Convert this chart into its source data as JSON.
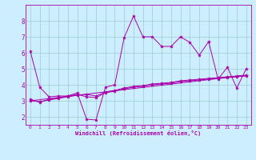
{
  "xlabel": "Windchill (Refroidissement éolien,°C)",
  "bg_color": "#cceeff",
  "grid_color": "#99cccc",
  "line_color": "#aa00aa",
  "xlim": [
    -0.5,
    23.5
  ],
  "ylim": [
    1.5,
    9.0
  ],
  "xticks": [
    0,
    1,
    2,
    3,
    4,
    5,
    6,
    7,
    8,
    9,
    10,
    11,
    12,
    13,
    14,
    15,
    16,
    17,
    18,
    19,
    20,
    21,
    22,
    23
  ],
  "yticks": [
    2,
    3,
    4,
    5,
    6,
    7,
    8
  ],
  "line1_x": [
    0,
    1,
    2,
    3,
    4,
    5,
    6,
    7,
    8,
    9,
    10,
    11,
    12,
    13,
    14,
    15,
    16,
    17,
    18,
    19,
    20,
    21,
    22,
    23
  ],
  "line1_y": [
    6.1,
    3.85,
    3.25,
    3.3,
    3.3,
    3.5,
    1.85,
    1.8,
    3.85,
    4.0,
    6.95,
    8.3,
    7.0,
    7.0,
    6.4,
    6.4,
    7.0,
    6.65,
    5.85,
    6.7,
    4.35,
    5.1,
    3.8,
    5.0
  ],
  "line2_x": [
    0,
    1,
    2,
    3,
    4,
    5,
    6,
    7,
    8,
    9,
    10,
    11,
    12,
    13,
    14,
    15,
    16,
    17,
    18,
    19,
    20,
    21,
    22,
    23
  ],
  "line2_y": [
    3.1,
    2.9,
    3.1,
    3.2,
    3.3,
    3.4,
    3.25,
    3.2,
    3.5,
    3.6,
    3.75,
    3.85,
    3.9,
    4.0,
    4.05,
    4.1,
    4.2,
    4.25,
    4.3,
    4.35,
    4.4,
    4.45,
    4.5,
    4.55
  ],
  "line3_x": [
    0,
    1,
    2,
    3,
    4,
    5,
    6,
    7,
    8,
    9,
    10,
    11,
    12,
    13,
    14,
    15,
    16,
    17,
    18,
    19,
    20,
    21,
    22,
    23
  ],
  "line3_y": [
    3.0,
    2.95,
    3.05,
    3.15,
    3.25,
    3.35,
    3.4,
    3.3,
    3.55,
    3.65,
    3.8,
    3.9,
    3.95,
    4.05,
    4.1,
    4.15,
    4.25,
    4.3,
    4.35,
    4.4,
    4.45,
    4.5,
    4.55,
    4.6
  ],
  "line4_x": [
    0,
    23
  ],
  "line4_y": [
    3.0,
    4.6
  ],
  "marker": "*",
  "marker_size": 3.0,
  "linewidth": 0.7
}
